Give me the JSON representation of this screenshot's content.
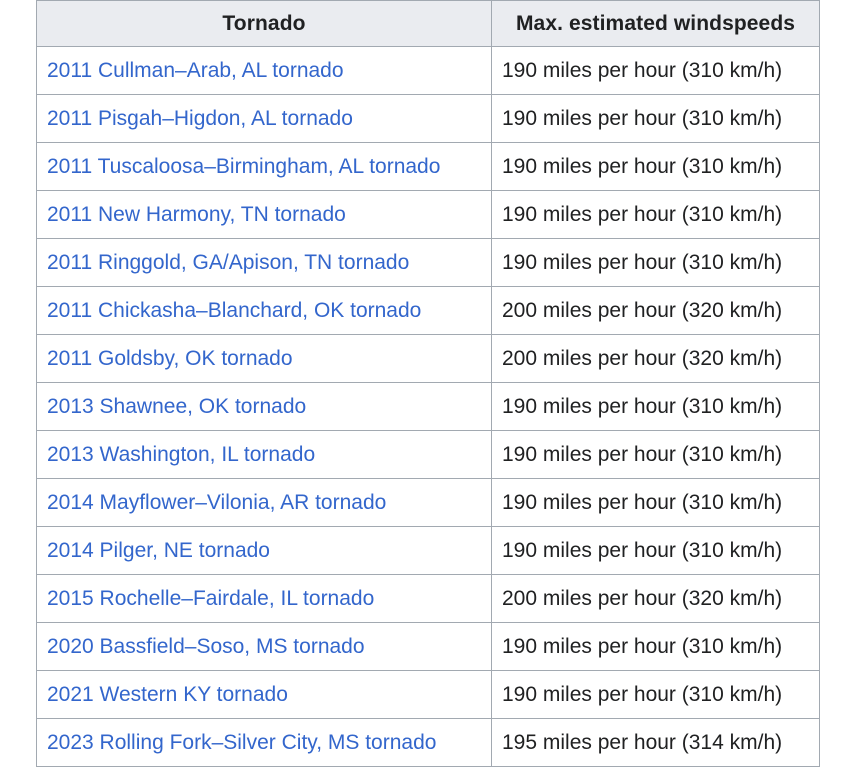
{
  "table": {
    "headers": [
      "Tornado",
      "Max. estimated windspeeds"
    ],
    "rows": [
      {
        "tornado": "2011 Cullman–Arab, AL tornado",
        "wind": "190 miles per hour (310 km/h)"
      },
      {
        "tornado": "2011 Pisgah–Higdon, AL tornado",
        "wind": "190 miles per hour (310 km/h)"
      },
      {
        "tornado": "2011 Tuscaloosa–Birmingham, AL tornado",
        "wind": "190 miles per hour (310 km/h)"
      },
      {
        "tornado": "2011 New Harmony, TN tornado",
        "wind": "190 miles per hour (310 km/h)"
      },
      {
        "tornado": "2011 Ringgold, GA/Apison, TN tornado",
        "wind": "190 miles per hour (310 km/h)"
      },
      {
        "tornado": "2011 Chickasha–Blanchard, OK tornado",
        "wind": "200 miles per hour (320 km/h)"
      },
      {
        "tornado": "2011 Goldsby, OK tornado",
        "wind": "200 miles per hour (320 km/h)"
      },
      {
        "tornado": "2013 Shawnee, OK tornado",
        "wind": "190 miles per hour (310 km/h)"
      },
      {
        "tornado": "2013 Washington, IL tornado",
        "wind": "190 miles per hour (310 km/h)"
      },
      {
        "tornado": "2014 Mayflower–Vilonia, AR tornado",
        "wind": "190 miles per hour (310 km/h)"
      },
      {
        "tornado": "2014 Pilger, NE tornado",
        "wind": "190 miles per hour (310 km/h)"
      },
      {
        "tornado": "2015 Rochelle–Fairdale, IL tornado",
        "wind": "200 miles per hour (320 km/h)"
      },
      {
        "tornado": "2020 Bassfield–Soso, MS tornado",
        "wind": "190 miles per hour (310 km/h)"
      },
      {
        "tornado": "2021 Western KY tornado",
        "wind": "190 miles per hour (310 km/h)"
      },
      {
        "tornado": "2023 Rolling Fork–Silver City, MS tornado",
        "wind": "195 miles per hour (314 km/h)"
      }
    ]
  },
  "colors": {
    "link": "#3366cc",
    "header_bg": "#eaecf0",
    "border": "#a2a9b1",
    "text": "#202122"
  }
}
